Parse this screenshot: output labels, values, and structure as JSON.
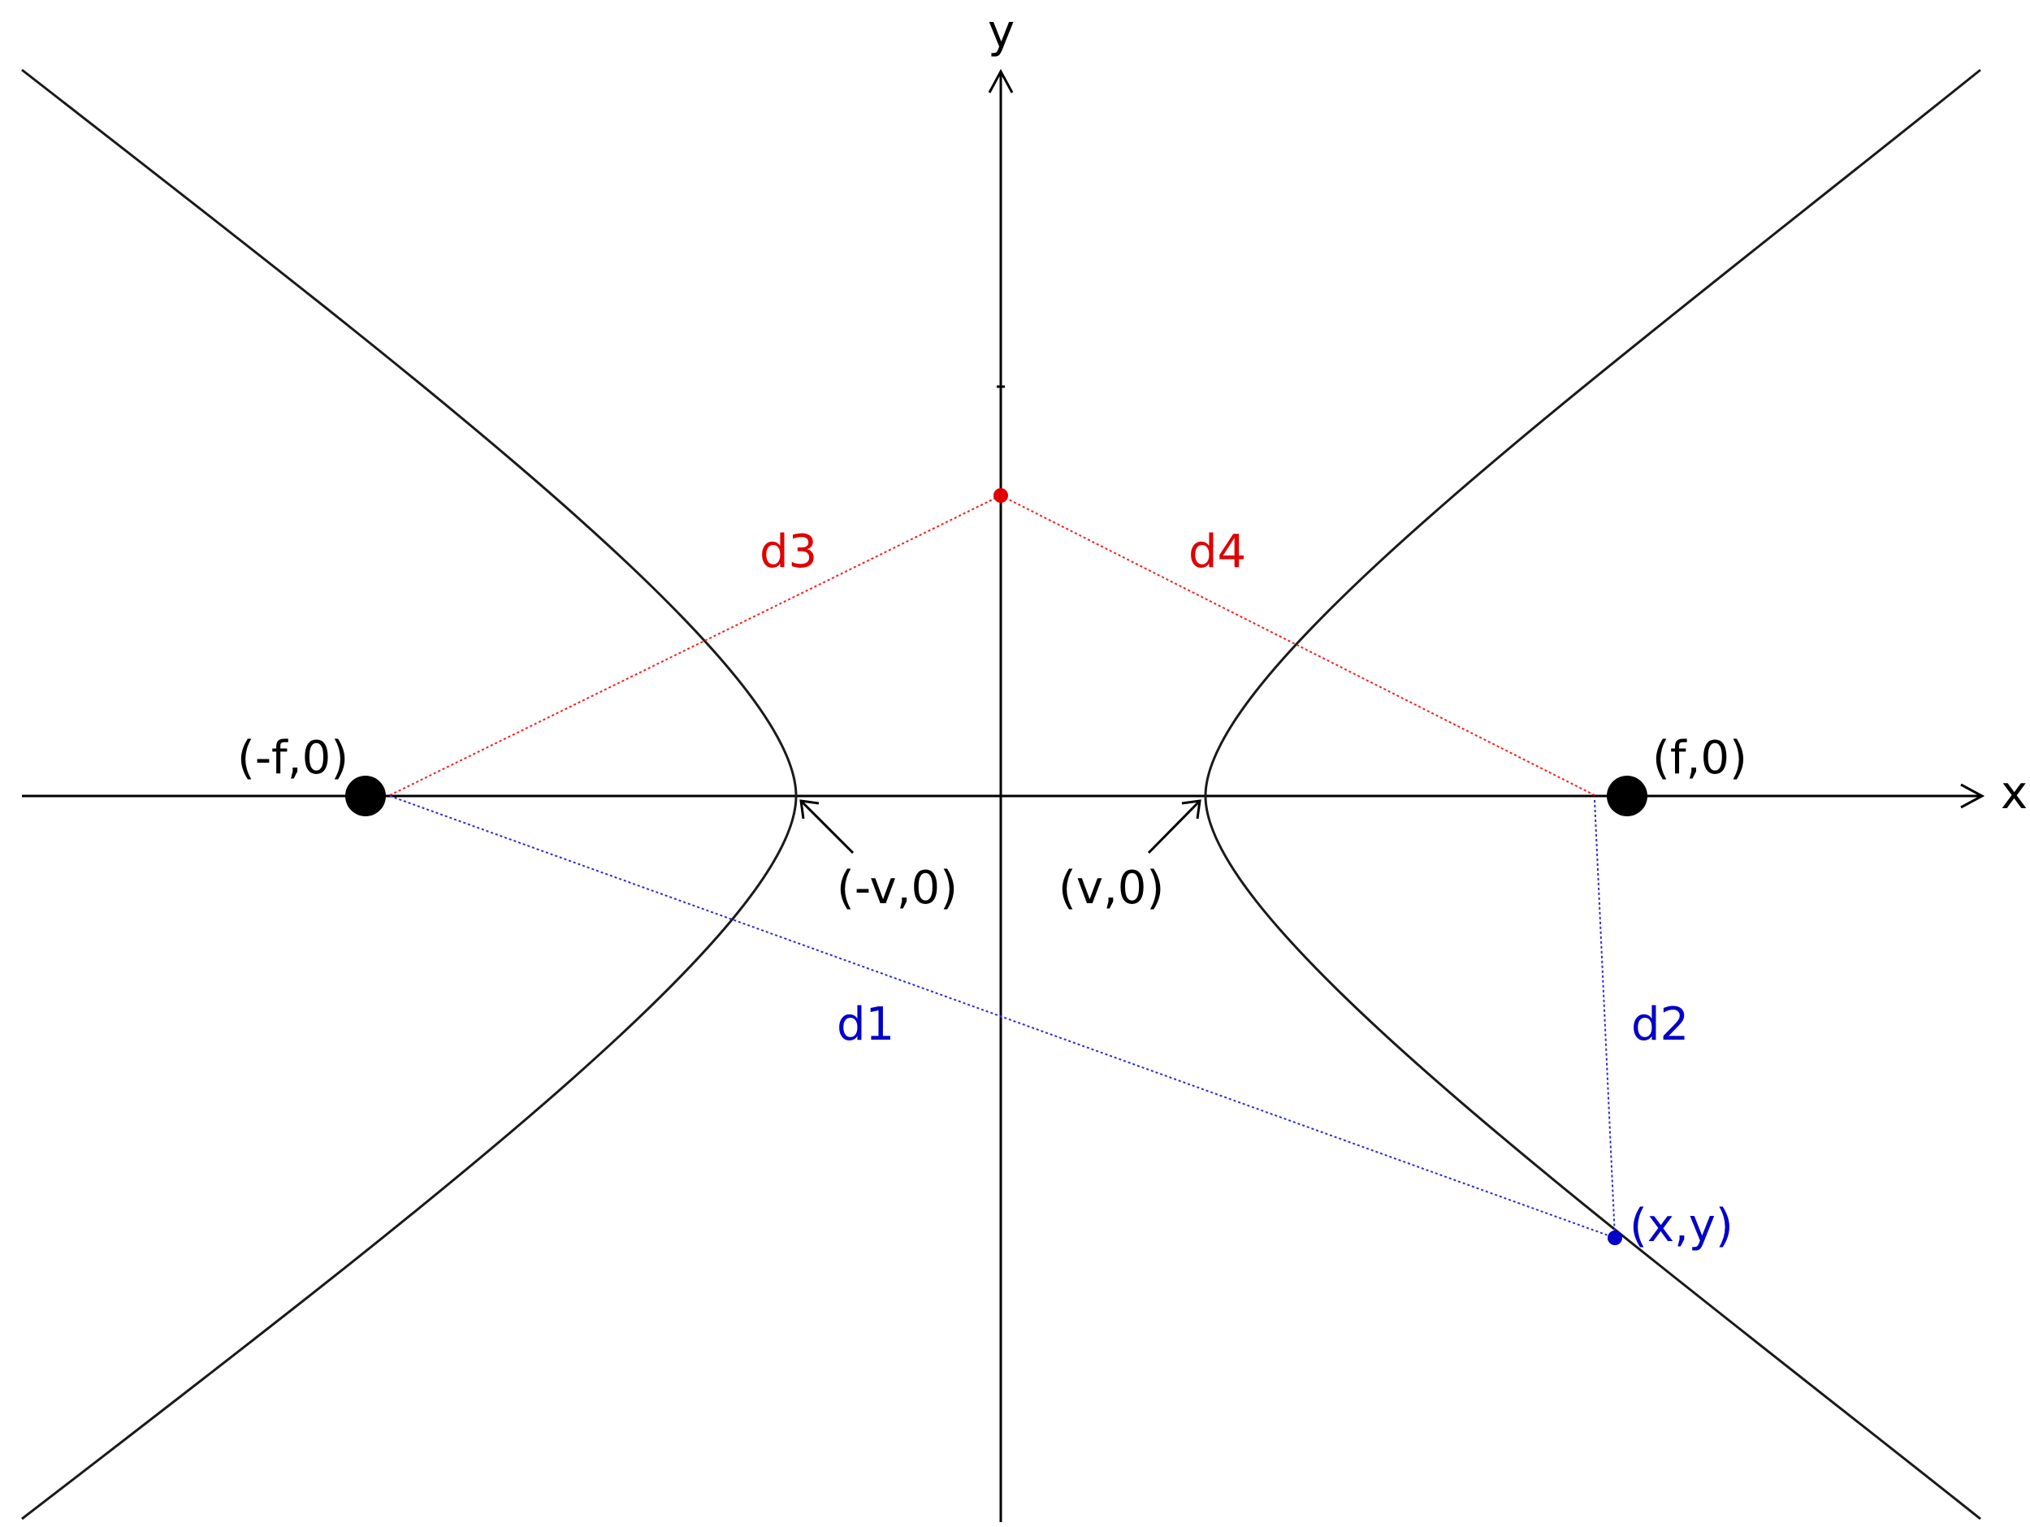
{
  "axes": {
    "x_label": "x",
    "y_label": "y"
  },
  "points": {
    "left_focus": "(-f,0)",
    "right_focus": "(f,0)",
    "left_vertex": "(-v,0)",
    "right_vertex": "(v,0)",
    "curve_point": "(x,y)"
  },
  "distances": {
    "d1": "d1",
    "d2": "d2",
    "d3": "d3",
    "d4": "d4"
  },
  "colors": {
    "curve": "#1a1a1a",
    "foci": "#000000",
    "red_construction": "#e00000",
    "blue_construction": "#0000c8"
  }
}
